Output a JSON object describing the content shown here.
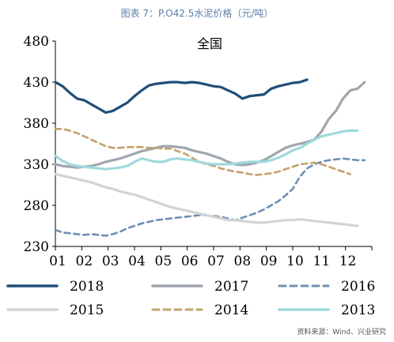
{
  "caption": "图表 7：P.O42.5水泥价格（元/吨）",
  "source": "资料来源：Wind、兴业研究",
  "chart_data": {
    "type": "line",
    "title": "全国",
    "xlabel": "",
    "ylabel": "",
    "x_ticks": [
      "01",
      "02",
      "03",
      "04",
      "05",
      "06",
      "07",
      "08",
      "09",
      "10",
      "11",
      "12"
    ],
    "y_ticks": [
      230,
      280,
      330,
      380,
      430,
      480
    ],
    "ylim": [
      230,
      480
    ],
    "legend_position": "bottom",
    "series": [
      {
        "name": "2018",
        "color": "#1f4e79",
        "dash": "solid",
        "width": 3.2,
        "values": [
          430,
          425,
          417,
          410,
          408,
          403,
          398,
          393,
          395,
          400,
          405,
          413,
          420,
          426,
          428,
          429,
          430,
          430,
          429,
          430,
          429,
          427,
          425,
          424,
          420,
          416,
          410,
          413,
          414,
          415,
          422,
          425,
          427,
          429,
          430,
          433
        ]
      },
      {
        "name": "2017",
        "color": "#9fa6ae",
        "dash": "solid",
        "width": 3.2,
        "values": [
          330,
          328,
          327,
          326,
          327,
          328,
          330,
          333,
          335,
          337,
          340,
          343,
          346,
          348,
          350,
          352,
          352,
          351,
          350,
          347,
          345,
          343,
          340,
          337,
          333,
          330,
          329,
          330,
          332,
          335,
          340,
          345,
          350,
          353,
          355,
          357,
          360,
          370,
          385,
          395,
          410,
          420,
          422,
          430
        ]
      },
      {
        "name": "2016",
        "color": "#6f8fb3",
        "dash": "dash",
        "width": 2.6,
        "values": [
          250,
          247,
          246,
          245,
          244,
          245,
          244,
          243,
          245,
          248,
          252,
          255,
          258,
          260,
          262,
          263,
          264,
          265,
          266,
          267,
          268,
          268,
          267,
          266,
          264,
          262,
          265,
          268,
          271,
          275,
          280,
          285,
          292,
          300,
          315,
          325,
          330,
          333,
          335,
          336,
          337,
          336,
          335,
          335
        ]
      },
      {
        "name": "2015",
        "color": "#d3d3d3",
        "dash": "solid",
        "width": 3.2,
        "values": [
          318,
          316,
          314,
          312,
          310,
          308,
          305,
          302,
          300,
          297,
          295,
          293,
          290,
          287,
          284,
          281,
          278,
          276,
          274,
          272,
          270,
          268,
          266,
          264,
          262,
          262,
          261,
          260,
          259,
          259,
          260,
          261,
          262,
          262,
          263,
          262,
          261,
          260,
          259,
          258,
          257,
          256,
          255
        ]
      },
      {
        "name": "2014",
        "color": "#c2a26d",
        "dash": "dash",
        "width": 2.6,
        "values": [
          373,
          373,
          371,
          368,
          364,
          360,
          356,
          352,
          350,
          350,
          351,
          351,
          351,
          350,
          350,
          349,
          349,
          346,
          343,
          338,
          333,
          330,
          328,
          325,
          323,
          321,
          320,
          318,
          317,
          318,
          319,
          321,
          324,
          327,
          330,
          331,
          332,
          330,
          327,
          324,
          321,
          318
        ]
      },
      {
        "name": "2013",
        "color": "#9fd9dd",
        "dash": "solid",
        "width": 3.2,
        "values": [
          340,
          334,
          330,
          328,
          327,
          326,
          325,
          324,
          325,
          326,
          328,
          333,
          337,
          335,
          333,
          333,
          336,
          337,
          336,
          335,
          333,
          331,
          330,
          330,
          330,
          331,
          332,
          333,
          333,
          333,
          335,
          338,
          342,
          347,
          350,
          355,
          360,
          364,
          366,
          368,
          370,
          371,
          371
        ]
      }
    ]
  }
}
